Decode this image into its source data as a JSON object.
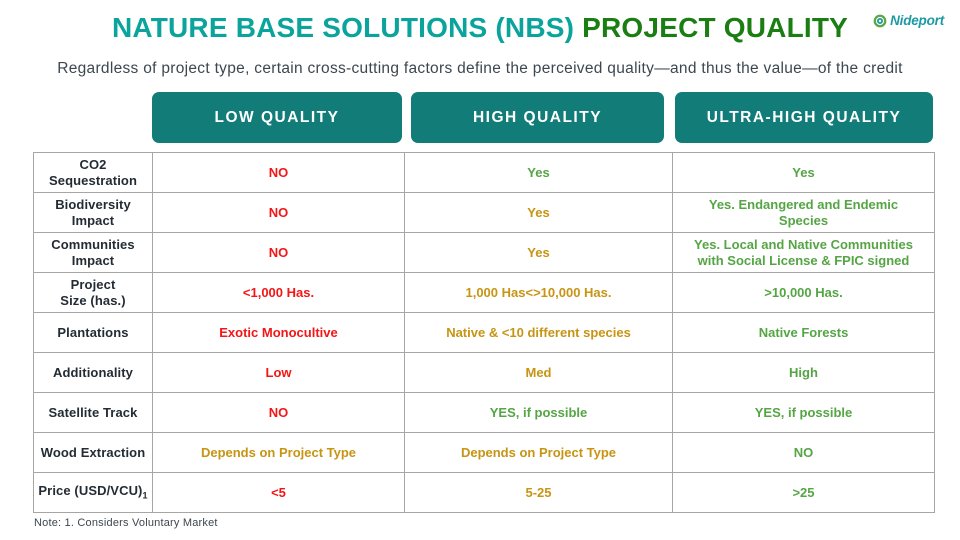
{
  "palette": {
    "red": "#f31616",
    "gold": "#c79413",
    "green": "#55a545",
    "pill_teal": "#127c78",
    "title_teal": "#0aa49d",
    "title_green": "#1b7e12",
    "logo_teal": "#1d9aa3",
    "subtle_text": "#3c4750"
  },
  "header": {
    "title_teal": "NATURE BASE SOLUTIONS (NBS)",
    "title_green": "PROJECT QUALITY",
    "logo_text": "Nideport",
    "subtitle": "Regardless of project type, certain cross-cutting factors define the perceived quality—and thus the value—of the credit"
  },
  "table": {
    "columns": [
      "LOW QUALITY",
      "HIGH QUALITY",
      "ULTRA-HIGH QUALITY"
    ],
    "rows": [
      {
        "label": "CO2\nSequestration",
        "cells": [
          {
            "text": "NO",
            "tone": "red"
          },
          {
            "text": "Yes",
            "tone": "green"
          },
          {
            "text": "Yes",
            "tone": "green"
          }
        ]
      },
      {
        "label": "Biodiversity\nImpact",
        "cells": [
          {
            "text": "NO",
            "tone": "red"
          },
          {
            "text": "Yes",
            "tone": "gold"
          },
          {
            "text": "Yes. Endangered and Endemic\nSpecies",
            "tone": "green"
          }
        ]
      },
      {
        "label": "Communities\nImpact",
        "cells": [
          {
            "text": "NO",
            "tone": "red"
          },
          {
            "text": "Yes",
            "tone": "gold"
          },
          {
            "text": "Yes. Local and Native Communities\nwith Social License & FPIC signed",
            "tone": "green"
          }
        ]
      },
      {
        "label": "Project\nSize (has.)",
        "cells": [
          {
            "text": "<1,000 Has.",
            "tone": "red"
          },
          {
            "text": "1,000 Has<>10,000 Has.",
            "tone": "gold"
          },
          {
            "text": ">10,000 Has.",
            "tone": "green"
          }
        ]
      },
      {
        "label": "Plantations",
        "cells": [
          {
            "text": "Exotic Monocultive",
            "tone": "red"
          },
          {
            "text": "Native & <10 different species",
            "tone": "gold"
          },
          {
            "text": "Native Forests",
            "tone": "green"
          }
        ]
      },
      {
        "label": "Additionality",
        "cells": [
          {
            "text": "Low",
            "tone": "red"
          },
          {
            "text": "Med",
            "tone": "gold"
          },
          {
            "text": "High",
            "tone": "green"
          }
        ]
      },
      {
        "label": "Satellite Track",
        "cells": [
          {
            "text": "NO",
            "tone": "red"
          },
          {
            "text": "YES, if possible",
            "tone": "green"
          },
          {
            "text": "YES, if possible",
            "tone": "green"
          }
        ]
      },
      {
        "label": "Wood Extraction",
        "cells": [
          {
            "text": "Depends on Project Type",
            "tone": "gold"
          },
          {
            "text": "Depends on Project Type",
            "tone": "gold"
          },
          {
            "text": "NO",
            "tone": "green"
          }
        ]
      },
      {
        "label": "Price (USD/VCU)",
        "label_sub": "1",
        "cells": [
          {
            "text": "<5",
            "tone": "red"
          },
          {
            "text": "5-25",
            "tone": "gold"
          },
          {
            "text": ">25",
            "tone": "green"
          }
        ]
      }
    ]
  },
  "footer": {
    "note": "Note: 1. Considers Voluntary Market"
  }
}
